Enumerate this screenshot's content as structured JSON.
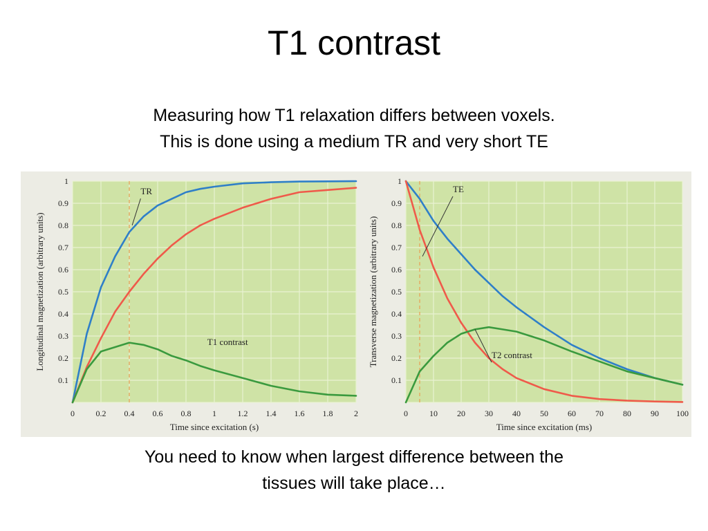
{
  "slide": {
    "title": "T1 contrast",
    "subtitle_lines": [
      "Measuring how T1 relaxation differs between voxels.",
      "This is done using a medium TR and very short TE"
    ],
    "footer_lines": [
      "You need to know when largest difference between the",
      "tissues will take place…"
    ]
  },
  "colors": {
    "plot_bg": "#cfe3a6",
    "grid": "#e9f2d2",
    "blue": "#2f7fc8",
    "red": "#ef5a4a",
    "green": "#3a9a3e",
    "marker": "#e8a35a"
  },
  "chart_data": [
    {
      "type": "line",
      "xlabel": "Time since excitation (s)",
      "ylabel": "Longitudinal magnetization (arbitrary units)",
      "xlim": [
        0,
        2
      ],
      "ylim": [
        0,
        1
      ],
      "x_ticks": [
        "0",
        "0.2",
        "0.4",
        "0.6",
        "0.8",
        "1",
        "1.2",
        "1.4",
        "1.6",
        "1.8",
        "2"
      ],
      "y_ticks": [
        "0.1",
        "0.2",
        "0.3",
        "0.4",
        "0.5",
        "0.6",
        "0.7",
        "0.8",
        "0.9",
        "1"
      ],
      "grid": true,
      "x": [
        0,
        0.1,
        0.2,
        0.3,
        0.4,
        0.5,
        0.6,
        0.7,
        0.8,
        0.9,
        1.0,
        1.2,
        1.4,
        1.6,
        1.8,
        2.0
      ],
      "series": [
        {
          "color_key": "blue",
          "values": [
            0,
            0.31,
            0.52,
            0.66,
            0.77,
            0.84,
            0.89,
            0.92,
            0.95,
            0.965,
            0.975,
            0.99,
            0.995,
            0.998,
            0.999,
            1.0
          ]
        },
        {
          "color_key": "red",
          "values": [
            0,
            0.16,
            0.29,
            0.41,
            0.5,
            0.58,
            0.65,
            0.71,
            0.76,
            0.8,
            0.83,
            0.88,
            0.92,
            0.95,
            0.96,
            0.97
          ]
        },
        {
          "color_key": "green",
          "values": [
            0,
            0.15,
            0.23,
            0.25,
            0.27,
            0.26,
            0.24,
            0.21,
            0.19,
            0.165,
            0.145,
            0.11,
            0.075,
            0.05,
            0.035,
            0.03
          ]
        }
      ],
      "marker": {
        "label": "TR",
        "x": 0.4
      },
      "annotations": [
        {
          "text": "TR",
          "x": 0.48,
          "y": 0.94,
          "leader_to": [
            0.42,
            0.8
          ]
        },
        {
          "text": "T1 contrast",
          "x": 0.95,
          "y": 0.26
        }
      ]
    },
    {
      "type": "line",
      "xlabel": "Time since excitation (ms)",
      "ylabel": "Transverse magnetization (arbitrary units)",
      "xlim": [
        0,
        100
      ],
      "ylim": [
        0,
        1
      ],
      "x_ticks": [
        "0",
        "10",
        "20",
        "30",
        "40",
        "50",
        "60",
        "70",
        "80",
        "90",
        "100"
      ],
      "y_ticks": [
        "0.1",
        "0.2",
        "0.3",
        "0.4",
        "0.5",
        "0.6",
        "0.7",
        "0.8",
        "0.9",
        "1"
      ],
      "grid": true,
      "x": [
        0,
        2.5,
        5,
        10,
        15,
        20,
        25,
        30,
        35,
        40,
        50,
        60,
        70,
        80,
        90,
        100
      ],
      "series": [
        {
          "color_key": "blue",
          "values": [
            1.0,
            0.96,
            0.92,
            0.82,
            0.74,
            0.67,
            0.6,
            0.54,
            0.48,
            0.43,
            0.34,
            0.26,
            0.2,
            0.15,
            0.11,
            0.08
          ]
        },
        {
          "color_key": "red",
          "values": [
            1.0,
            0.89,
            0.78,
            0.61,
            0.47,
            0.36,
            0.27,
            0.2,
            0.15,
            0.11,
            0.06,
            0.03,
            0.015,
            0.008,
            0.004,
            0.002
          ]
        },
        {
          "color_key": "green",
          "values": [
            0.0,
            0.07,
            0.14,
            0.21,
            0.27,
            0.31,
            0.33,
            0.34,
            0.33,
            0.32,
            0.28,
            0.23,
            0.185,
            0.14,
            0.11,
            0.08
          ]
        }
      ],
      "marker": {
        "label": "TE",
        "x": 5
      },
      "annotations": [
        {
          "text": "TE",
          "x": 17,
          "y": 0.95,
          "leader_to": [
            6,
            0.66
          ]
        },
        {
          "text": "T2 contrast",
          "x": 31,
          "y": 0.2,
          "leader_to": [
            25,
            0.33
          ]
        }
      ]
    }
  ]
}
